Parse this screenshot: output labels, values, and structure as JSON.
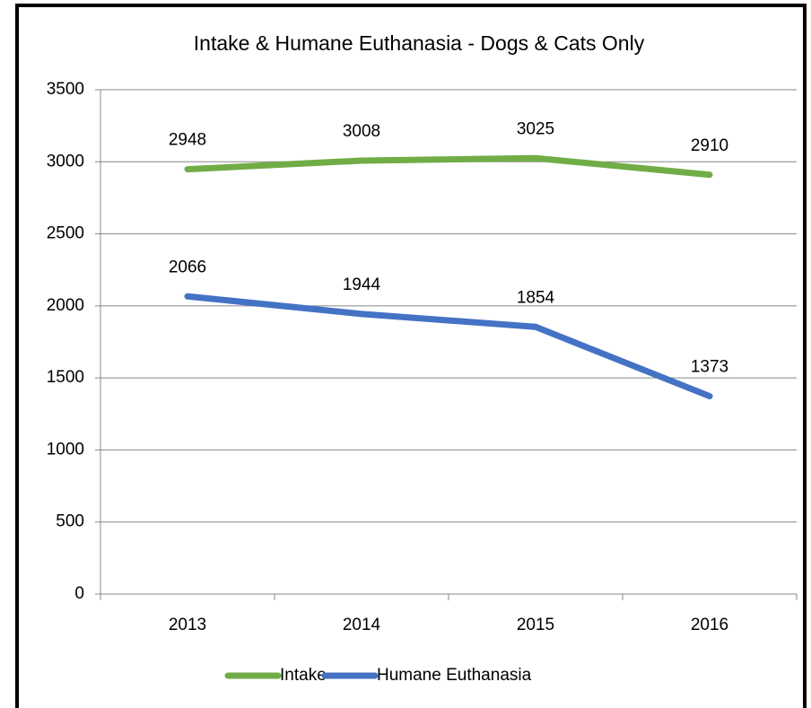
{
  "chart_data": {
    "type": "line",
    "title": "Intake & Humane Euthanasia - Dogs & Cats Only",
    "categories": [
      "2013",
      "2014",
      "2015",
      "2016"
    ],
    "series": [
      {
        "name": "Intake",
        "color": "#70ad47",
        "values": [
          2948,
          3008,
          3025,
          2910
        ]
      },
      {
        "name": "Humane Euthanasia",
        "color": "#4472c4",
        "values": [
          2066,
          1944,
          1854,
          1373
        ]
      }
    ],
    "ylim": [
      0,
      3500
    ],
    "yticks": [
      0,
      500,
      1000,
      1500,
      2000,
      2500,
      3000,
      3500
    ],
    "grid": true,
    "legend": "bottom"
  }
}
